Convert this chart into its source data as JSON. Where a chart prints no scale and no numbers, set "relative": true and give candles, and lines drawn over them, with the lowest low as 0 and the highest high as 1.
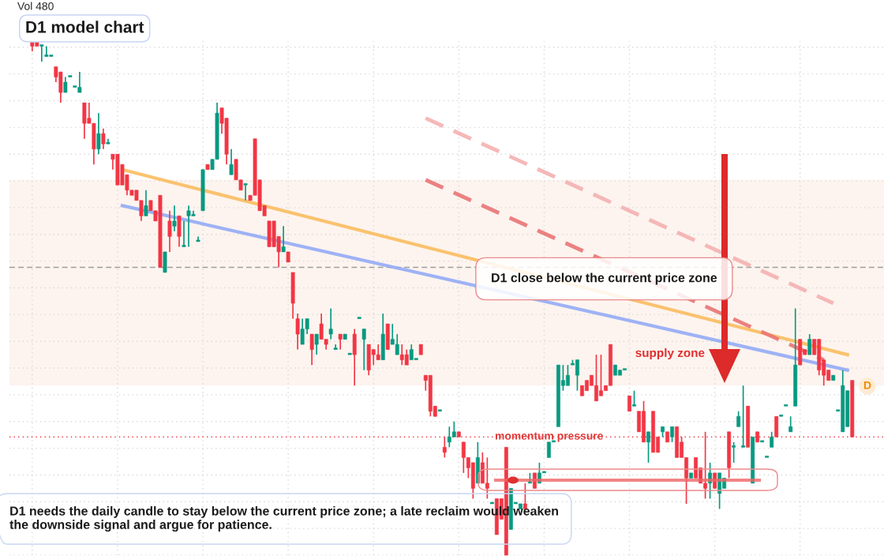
{
  "chart_data": {
    "type": "candlestick",
    "title": "D1 model chart",
    "relative": true,
    "grid": true,
    "annotations": [
      "Vol 480",
      "D1 close below the current price zone",
      "supply zone",
      "momentum pressure",
      "D1 needs the daily candle to stay below the current price zone; a late reclaim would weaken the downside signal and argue for patience.",
      "D"
    ],
    "categories": [
      null,
      null,
      null,
      null,
      null,
      null,
      null,
      null,
      null,
      null,
      null,
      null,
      null,
      null,
      null,
      null,
      null,
      null,
      null,
      null,
      null,
      null,
      null,
      null,
      null,
      null,
      null,
      null,
      null,
      null,
      null,
      null,
      null,
      null,
      null,
      null,
      null,
      null,
      null,
      null,
      null,
      null,
      null,
      null,
      null,
      null,
      null,
      null,
      null,
      null,
      null,
      null,
      null,
      null,
      null,
      null,
      null,
      null,
      null,
      null,
      null,
      null,
      null,
      null,
      null,
      null,
      null,
      null,
      null,
      null,
      null,
      null,
      null,
      null,
      null,
      null,
      null,
      null,
      null,
      null,
      null,
      null,
      null,
      null,
      null,
      null,
      null,
      null,
      null,
      null,
      null,
      null,
      null,
      null,
      null,
      null,
      null,
      null,
      null,
      null,
      null,
      null,
      null,
      null,
      null,
      null,
      null,
      null,
      null,
      null,
      null,
      null,
      null,
      null,
      null,
      null,
      null,
      null,
      null,
      null,
      null,
      null,
      null,
      null,
      null,
      null,
      null,
      null,
      null,
      null,
      null,
      null,
      null,
      null,
      null,
      null,
      null,
      null,
      null,
      null,
      null,
      null,
      null,
      null,
      null,
      null,
      null,
      null,
      null,
      null,
      null,
      null,
      null,
      null,
      null,
      null,
      null,
      null,
      null,
      null,
      null,
      null,
      null,
      null,
      null,
      null,
      null,
      null,
      null,
      null,
      null,
      null,
      null,
      null
    ],
    "ohlc": [
      [
        1.0,
        1.0,
        0.98,
        0.99
      ],
      [
        1.0,
        1.0,
        0.99,
        0.99
      ],
      [
        0.99,
        0.99,
        0.96,
        0.99
      ],
      [
        0.97,
        0.99,
        0.97,
        0.97
      ],
      [
        0.97,
        0.97,
        0.97,
        0.97
      ],
      [
        0.95,
        0.95,
        0.92,
        0.93
      ],
      [
        0.94,
        0.94,
        0.88,
        0.9
      ],
      [
        0.9,
        0.93,
        0.9,
        0.92
      ],
      [
        0.93,
        0.93,
        0.93,
        0.93
      ],
      [
        0.91,
        0.91,
        0.91,
        0.91
      ],
      [
        0.9,
        0.94,
        0.9,
        0.91
      ],
      [
        0.88,
        0.88,
        0.81,
        0.84
      ],
      [
        0.85,
        0.88,
        0.84,
        0.84
      ],
      [
        0.84,
        0.84,
        0.76,
        0.79
      ],
      [
        0.79,
        0.86,
        0.78,
        0.82
      ],
      [
        0.82,
        0.83,
        0.79,
        0.8
      ],
      [
        0.8,
        0.81,
        0.8,
        0.8
      ],
      [
        0.78,
        0.78,
        0.75,
        0.77
      ],
      [
        0.78,
        0.78,
        0.72,
        0.72
      ],
      [
        0.76,
        0.76,
        0.72,
        0.72
      ],
      [
        0.74,
        0.74,
        0.7,
        0.71
      ],
      [
        0.71,
        0.71,
        0.7,
        0.7
      ],
      [
        0.71,
        0.71,
        0.69,
        0.69
      ],
      [
        0.69,
        0.69,
        0.65,
        0.66
      ],
      [
        0.66,
        0.71,
        0.66,
        0.68
      ],
      [
        0.69,
        0.69,
        0.67,
        0.67
      ],
      [
        0.67,
        0.67,
        0.65,
        0.65
      ],
      [
        0.7,
        0.7,
        0.56,
        0.56
      ],
      [
        0.55,
        0.59,
        0.55,
        0.59
      ],
      [
        0.65,
        0.67,
        0.59,
        0.62
      ],
      [
        0.64,
        0.68,
        0.63,
        0.65
      ],
      [
        0.66,
        0.66,
        0.6,
        0.62
      ],
      [
        0.6,
        0.65,
        0.6,
        0.6
      ],
      [
        0.66,
        0.68,
        0.6,
        0.67
      ],
      [
        0.66,
        0.67,
        0.66,
        0.66
      ],
      [
        0.61,
        0.62,
        0.61,
        0.61
      ],
      [
        0.67,
        0.75,
        0.67,
        0.75
      ],
      [
        0.76,
        0.76,
        0.75,
        0.75
      ],
      [
        0.75,
        0.77,
        0.75,
        0.77
      ],
      [
        0.77,
        0.88,
        0.77,
        0.86
      ],
      [
        0.87,
        0.87,
        0.82,
        0.84
      ],
      [
        0.85,
        0.85,
        0.76,
        0.78
      ],
      [
        0.74,
        0.79,
        0.74,
        0.76
      ],
      [
        0.77,
        0.77,
        0.73,
        0.73
      ],
      [
        0.73,
        0.73,
        0.71,
        0.71
      ],
      [
        0.72,
        0.72,
        0.69,
        0.72
      ],
      [
        0.7,
        0.7,
        0.69,
        0.69
      ],
      [
        0.81,
        0.81,
        0.7,
        0.7
      ],
      [
        0.73,
        0.73,
        0.67,
        0.67
      ],
      [
        0.68,
        0.68,
        0.66,
        0.66
      ],
      [
        0.65,
        0.65,
        0.6,
        0.6
      ],
      [
        0.65,
        0.65,
        0.6,
        0.6
      ],
      [
        0.62,
        0.62,
        0.56,
        0.59
      ],
      [
        0.59,
        0.64,
        0.59,
        0.6
      ],
      [
        0.59,
        0.59,
        0.57,
        0.57
      ],
      [
        0.55,
        0.55,
        0.46,
        0.49
      ],
      [
        0.46,
        0.47,
        0.4,
        0.43
      ],
      [
        0.41,
        0.46,
        0.41,
        0.44
      ],
      [
        0.44,
        0.46,
        0.43,
        0.46
      ],
      [
        0.43,
        0.43,
        0.37,
        0.4
      ],
      [
        0.41,
        0.43,
        0.39,
        0.43
      ],
      [
        0.45,
        0.47,
        0.42,
        0.42
      ],
      [
        0.42,
        0.42,
        0.4,
        0.41
      ],
      [
        0.43,
        0.48,
        0.42,
        0.44
      ],
      [
        0.4,
        0.41,
        0.4,
        0.4
      ],
      [
        0.43,
        0.43,
        0.4,
        0.42
      ],
      [
        0.42,
        0.43,
        0.42,
        0.43
      ],
      [
        0.39,
        0.39,
        0.39,
        0.39
      ],
      [
        0.43,
        0.44,
        0.33,
        0.39
      ],
      [
        0.46,
        0.46,
        0.46,
        0.46
      ],
      [
        0.42,
        0.44,
        0.36,
        0.44
      ],
      [
        0.41,
        0.41,
        0.35,
        0.36
      ],
      [
        0.4,
        0.4,
        0.37,
        0.39
      ],
      [
        0.39,
        0.41,
        0.38,
        0.38
      ],
      [
        0.38,
        0.47,
        0.38,
        0.43
      ],
      [
        0.45,
        0.45,
        0.4,
        0.4
      ],
      [
        0.41,
        0.45,
        0.41,
        0.42
      ],
      [
        0.39,
        0.43,
        0.39,
        0.41
      ],
      [
        0.39,
        0.41,
        0.37,
        0.38
      ],
      [
        0.39,
        0.4,
        0.37,
        0.37
      ],
      [
        0.38,
        0.41,
        0.38,
        0.4
      ],
      [
        0.38,
        0.38,
        0.38,
        0.38
      ],
      [
        0.41,
        0.41,
        0.39,
        0.39
      ],
      [
        0.35,
        0.35,
        0.32,
        0.34
      ],
      [
        0.35,
        0.35,
        0.27,
        0.28
      ],
      [
        0.29,
        0.29,
        0.27,
        0.27
      ],
      [
        0.28,
        0.28,
        0.28,
        0.28
      ],
      [
        0.21,
        0.23,
        0.19,
        0.2
      ],
      [
        0.22,
        0.25,
        0.21,
        0.23
      ],
      [
        0.23,
        0.26,
        0.23,
        0.24
      ],
      [
        0.24,
        0.24,
        0.23,
        0.23
      ],
      [
        0.22,
        0.22,
        0.16,
        0.19
      ],
      [
        0.19,
        0.19,
        0.15,
        0.17
      ],
      [
        0.18,
        0.18,
        0.11,
        0.13
      ],
      [
        0.14,
        0.22,
        0.14,
        0.19
      ],
      [
        0.18,
        0.2,
        0.14,
        0.14
      ],
      [
        0.14,
        0.19,
        0.11,
        0.13
      ],
      [
        0.1,
        0.1,
        0.1,
        0.1
      ],
      [
        0.11,
        0.11,
        0.04,
        0.04
      ],
      [
        0.11,
        0.11,
        0.07,
        0.07
      ],
      [
        0.21,
        0.21,
        0.0,
        0.0
      ],
      [
        0.05,
        0.13,
        0.05,
        0.13
      ],
      [
        0.1,
        0.1,
        0.1,
        0.1
      ],
      [
        0.09,
        0.1,
        0.09,
        0.1
      ],
      [
        0.1,
        0.14,
        0.09,
        0.09
      ],
      [
        0.14,
        0.16,
        0.14,
        0.14
      ],
      [
        0.16,
        0.16,
        0.13,
        0.13
      ],
      [
        0.14,
        0.18,
        0.14,
        0.16
      ],
      [
        0.16,
        0.16,
        0.16,
        0.16
      ],
      [
        0.19,
        0.22,
        0.19,
        0.22
      ],
      [
        0.22,
        0.22,
        0.22,
        0.22
      ],
      [
        0.25,
        0.37,
        0.25,
        0.37
      ],
      [
        0.33,
        0.37,
        0.32,
        0.34
      ],
      [
        0.33,
        0.37,
        0.33,
        0.35
      ],
      [
        0.37,
        0.38,
        0.37,
        0.37
      ],
      [
        0.35,
        0.38,
        0.32,
        0.38
      ],
      [
        0.33,
        0.33,
        0.31,
        0.31
      ],
      [
        0.34,
        0.34,
        0.32,
        0.32
      ],
      [
        0.35,
        0.35,
        0.33,
        0.33
      ],
      [
        0.33,
        0.39,
        0.3,
        0.3
      ],
      [
        0.32,
        0.39,
        0.31,
        0.31
      ],
      [
        0.33,
        0.33,
        0.32,
        0.32
      ],
      [
        0.41,
        0.41,
        0.33,
        0.33
      ],
      [
        0.35,
        0.37,
        0.35,
        0.37
      ],
      [
        0.35,
        0.36,
        0.35,
        0.36
      ],
      [
        0.36,
        0.36,
        0.36,
        0.36
      ],
      [
        0.31,
        0.31,
        0.28,
        0.28
      ],
      [
        0.29,
        0.32,
        0.29,
        0.29
      ],
      [
        0.28,
        0.28,
        0.24,
        0.24
      ],
      [
        0.28,
        0.3,
        0.22,
        0.22
      ],
      [
        0.22,
        0.24,
        0.18,
        0.24
      ],
      [
        0.28,
        0.28,
        0.2,
        0.2
      ],
      [
        0.23,
        0.23,
        0.2,
        0.2
      ],
      [
        0.24,
        0.25,
        0.23,
        0.25
      ],
      [
        0.24,
        0.24,
        0.22,
        0.22
      ],
      [
        0.23,
        0.25,
        0.22,
        0.25
      ],
      [
        0.25,
        0.25,
        0.19,
        0.19
      ],
      [
        0.22,
        0.23,
        0.19,
        0.19
      ],
      [
        0.19,
        0.19,
        0.1,
        0.15
      ],
      [
        0.15,
        0.16,
        0.15,
        0.16
      ],
      [
        0.19,
        0.19,
        0.15,
        0.15
      ],
      [
        0.17,
        0.17,
        0.14,
        0.14
      ],
      [
        0.14,
        0.24,
        0.11,
        0.13
      ],
      [
        0.14,
        0.18,
        0.11,
        0.16
      ],
      [
        0.16,
        0.16,
        0.13,
        0.13
      ],
      [
        0.12,
        0.16,
        0.09,
        0.16
      ],
      [
        0.13,
        0.15,
        0.13,
        0.15
      ],
      [
        0.24,
        0.24,
        0.15,
        0.17
      ],
      [
        0.21,
        0.22,
        0.18,
        0.21
      ],
      [
        0.25,
        0.28,
        0.25,
        0.27
      ],
      [
        0.21,
        0.33,
        0.21,
        0.21
      ],
      [
        0.29,
        0.29,
        0.21,
        0.21
      ],
      [
        0.14,
        0.23,
        0.14,
        0.23
      ],
      [
        0.24,
        0.24,
        0.22,
        0.22
      ],
      [
        0.22,
        0.22,
        0.22,
        0.22
      ],
      [
        0.19,
        0.19,
        0.19,
        0.19
      ],
      [
        0.21,
        0.24,
        0.21,
        0.23
      ],
      [
        0.27,
        0.27,
        0.23,
        0.23
      ],
      [
        0.27,
        0.27,
        0.27,
        0.27
      ],
      [
        0.29,
        0.29,
        0.29,
        0.29
      ],
      [
        0.24,
        0.27,
        0.24,
        0.25
      ],
      [
        0.29,
        0.48,
        0.29,
        0.37
      ],
      [
        0.42,
        0.42,
        0.37,
        0.37
      ],
      [
        0.4,
        0.4,
        0.39,
        0.39
      ],
      [
        0.39,
        0.43,
        0.39,
        0.42
      ],
      [
        0.42,
        0.42,
        0.39,
        0.39
      ],
      [
        0.42,
        0.42,
        0.35,
        0.36
      ],
      [
        0.38,
        0.38,
        0.33,
        0.35
      ],
      [
        0.36,
        0.36,
        0.34,
        0.34
      ],
      [
        0.34,
        0.35,
        0.34,
        0.35
      ],
      [
        0.28,
        0.28,
        0.28,
        0.28
      ],
      [
        0.24,
        0.36,
        0.24,
        0.33
      ],
      [
        0.25,
        0.32,
        0.25,
        0.32
      ],
      [
        0.34,
        0.34,
        0.23,
        0.23
      ]
    ],
    "series": [
      {
        "type": "line",
        "color": "#f9bd5f",
        "line_style": "solid",
        "values": [
          null,
          null,
          null,
          null,
          null,
          null,
          null,
          null,
          null,
          null,
          null,
          null,
          null,
          null,
          null,
          null,
          null,
          null,
          null,
          0.75,
          null,
          null,
          null,
          null,
          null,
          null,
          null,
          null,
          null,
          null,
          null,
          null,
          null,
          null,
          null,
          null,
          null,
          null,
          null,
          null,
          null,
          null,
          null,
          null,
          null,
          null,
          null,
          null,
          null,
          null,
          null,
          null,
          null,
          null,
          null,
          null,
          null,
          null,
          null,
          null,
          null,
          null,
          null,
          null,
          null,
          null,
          null,
          null,
          null,
          null,
          null,
          null,
          null,
          null,
          null,
          null,
          null,
          null,
          null,
          null,
          null,
          null,
          null,
          null,
          null,
          null,
          null,
          null,
          null,
          null,
          null,
          null,
          null,
          null,
          null,
          null,
          null,
          null,
          null,
          null,
          null,
          null,
          null,
          null,
          null,
          null,
          null,
          null,
          null,
          null,
          null,
          null,
          null,
          null,
          null,
          null,
          null,
          null,
          null,
          null,
          null,
          null,
          null,
          null,
          null,
          null,
          null,
          null,
          null,
          null,
          null,
          null,
          null,
          null,
          null,
          null,
          null,
          null,
          null,
          null,
          null,
          null,
          null,
          null,
          null,
          null,
          null,
          null,
          null,
          null,
          null,
          null,
          null,
          null,
          null,
          null,
          null,
          null,
          null,
          null,
          null,
          null,
          null,
          null,
          null,
          null,
          null,
          null,
          null,
          null,
          null,
          null,
          0.39,
          null
        ]
      },
      {
        "type": "line",
        "color": "#93abf5",
        "line_style": "solid",
        "values": [
          null,
          null,
          null,
          null,
          null,
          null,
          null,
          null,
          null,
          null,
          null,
          null,
          null,
          null,
          null,
          null,
          null,
          null,
          null,
          0.68,
          null,
          null,
          null,
          null,
          null,
          null,
          null,
          null,
          null,
          null,
          null,
          null,
          null,
          null,
          null,
          null,
          null,
          null,
          null,
          null,
          null,
          null,
          null,
          null,
          null,
          null,
          null,
          null,
          null,
          null,
          null,
          null,
          null,
          null,
          null,
          null,
          null,
          null,
          null,
          null,
          null,
          null,
          null,
          null,
          null,
          null,
          null,
          null,
          null,
          null,
          null,
          null,
          null,
          null,
          null,
          null,
          null,
          null,
          null,
          null,
          null,
          null,
          null,
          null,
          null,
          null,
          null,
          null,
          null,
          null,
          null,
          null,
          null,
          null,
          null,
          null,
          null,
          null,
          null,
          null,
          null,
          null,
          null,
          null,
          null,
          null,
          null,
          null,
          null,
          null,
          null,
          null,
          null,
          null,
          null,
          null,
          null,
          null,
          null,
          null,
          null,
          null,
          null,
          null,
          null,
          null,
          null,
          null,
          null,
          null,
          null,
          null,
          null,
          null,
          null,
          null,
          null,
          null,
          null,
          null,
          null,
          null,
          null,
          null,
          null,
          null,
          null,
          null,
          null,
          null,
          null,
          null,
          null,
          null,
          null,
          null,
          null,
          null,
          null,
          null,
          null,
          null,
          null,
          null,
          null,
          null,
          null,
          null,
          null,
          null,
          null,
          null,
          0.36,
          null
        ]
      },
      {
        "type": "line",
        "color": "#e97474",
        "line_style": "dashed",
        "values": [
          null,
          null,
          null,
          null,
          null,
          null,
          null,
          null,
          null,
          null,
          null,
          null,
          null,
          null,
          null,
          null,
          null,
          null,
          null,
          null,
          null,
          null,
          null,
          null,
          null,
          null,
          null,
          null,
          null,
          null,
          null,
          null,
          null,
          null,
          null,
          null,
          null,
          null,
          null,
          null,
          null,
          null,
          null,
          null,
          null,
          null,
          null,
          null,
          null,
          null,
          null,
          null,
          null,
          null,
          null,
          null,
          null,
          null,
          null,
          null,
          null,
          null,
          null,
          null,
          null,
          null,
          null,
          null,
          null,
          null,
          null,
          null,
          null,
          null,
          null,
          null,
          null,
          null,
          null,
          null,
          null,
          null,
          null,
          0.73,
          null,
          null,
          null,
          null,
          null,
          null,
          null,
          null,
          null,
          null,
          null,
          null,
          null,
          null,
          null,
          null,
          null,
          null,
          null,
          null,
          null,
          null,
          null,
          null,
          null,
          null,
          null,
          null,
          null,
          null,
          null,
          null,
          null,
          null,
          null,
          null,
          null,
          null,
          null,
          null,
          null,
          null,
          null,
          null,
          null,
          null,
          null,
          null,
          null,
          null,
          null,
          null,
          null,
          null,
          null,
          null,
          null,
          null,
          null,
          null,
          null,
          null,
          null,
          null,
          null,
          null,
          null,
          null,
          null,
          null,
          null,
          null,
          null,
          null,
          null,
          null,
          null,
          null,
          null,
          null,
          null,
          null,
          null,
          0.38,
          null,
          null,
          null,
          null,
          null,
          null
        ]
      },
      {
        "type": "line",
        "color": "#f4b0b0",
        "line_style": "dashed",
        "values": [
          null,
          null,
          null,
          null,
          null,
          null,
          null,
          null,
          null,
          null,
          null,
          null,
          null,
          null,
          null,
          null,
          null,
          null,
          null,
          null,
          null,
          null,
          null,
          null,
          null,
          null,
          null,
          null,
          null,
          null,
          null,
          null,
          null,
          null,
          null,
          null,
          null,
          null,
          null,
          null,
          null,
          null,
          null,
          null,
          null,
          null,
          null,
          null,
          null,
          null,
          null,
          null,
          null,
          null,
          null,
          null,
          null,
          null,
          null,
          null,
          null,
          null,
          null,
          null,
          null,
          null,
          null,
          null,
          null,
          null,
          null,
          null,
          null,
          null,
          null,
          null,
          null,
          null,
          null,
          null,
          null,
          null,
          null,
          0.85,
          null,
          null,
          null,
          null,
          null,
          null,
          null,
          null,
          null,
          null,
          null,
          null,
          null,
          null,
          null,
          null,
          null,
          null,
          null,
          null,
          null,
          null,
          null,
          null,
          null,
          null,
          null,
          null,
          null,
          null,
          null,
          null,
          null,
          null,
          null,
          null,
          null,
          null,
          null,
          null,
          null,
          null,
          null,
          null,
          null,
          null,
          null,
          null,
          null,
          null,
          null,
          null,
          null,
          null,
          null,
          null,
          null,
          null,
          null,
          null,
          null,
          null,
          null,
          null,
          null,
          null,
          null,
          null,
          null,
          null,
          null,
          null,
          null,
          null,
          null,
          null,
          null,
          null,
          null,
          null,
          null,
          null,
          null,
          null,
          null,
          0.49,
          null,
          null,
          null,
          null
        ]
      }
    ],
    "ref_lines": [
      {
        "axis": "y",
        "value": 0.56,
        "color": "#9e9e9e",
        "line_style": "dashed"
      },
      {
        "axis": "y",
        "value": 0.23,
        "color": "#f23645",
        "line_style": "dotted"
      }
    ],
    "bands": [
      {
        "axis": "y",
        "from": 0.33,
        "to": 0.73,
        "color": "#fdf4ef"
      }
    ]
  }
}
